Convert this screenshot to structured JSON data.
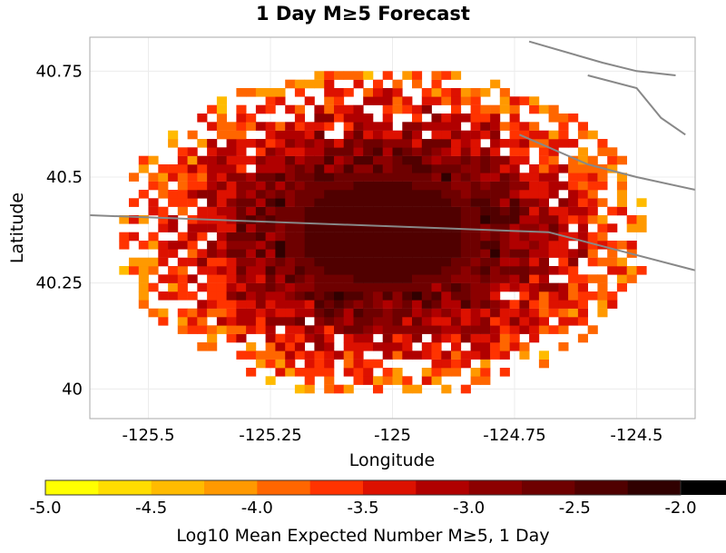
{
  "chart_data": {
    "type": "heatmap",
    "title": "1 Day M≥5 Forecast",
    "xlabel": "Longitude",
    "ylabel": "Latitude",
    "xlim": [
      -125.62,
      -124.38
    ],
    "ylim": [
      39.93,
      40.83
    ],
    "x_ticks": [
      -125.5,
      -125.25,
      -125,
      -124.75,
      -124.5
    ],
    "x_tick_labels": [
      "-125.5",
      "-125.25",
      "-125",
      "-124.75",
      "-124.5"
    ],
    "y_ticks": [
      40,
      40.25,
      40.5,
      40.75
    ],
    "y_tick_labels": [
      "40",
      "40.25",
      "40.5",
      "40.75"
    ],
    "grid": true,
    "cell_size_deg": 0.02,
    "field": {
      "center_lon": -125.02,
      "center_lat": 40.37,
      "peak_log10": -2.3,
      "core_lon_radius": 0.21,
      "core_lat_radius": 0.15,
      "outer_extent_deg": 0.5,
      "background": "white (below -5.0)"
    },
    "colorbar": {
      "label": "Log10 Mean Expected Number M≥5, 1 Day",
      "min": -5.0,
      "max": -2.0,
      "step": 0.25,
      "tick_labels": [
        "-5.0",
        "-4.5",
        "-4.0",
        "-3.5",
        "-3.0",
        "-2.5",
        "-2.0"
      ],
      "colors": [
        "#ffff00",
        "#ffdd00",
        "#ffbb00",
        "#ff9900",
        "#ff6600",
        "#ff3300",
        "#dd1100",
        "#b00000",
        "#8c0000",
        "#6e0000",
        "#500000",
        "#300000",
        "#000000"
      ]
    },
    "overlay_lines": [
      {
        "name": "fault-trace",
        "color": "#888888",
        "points": [
          [
            -125.62,
            40.41
          ],
          [
            -124.68,
            40.37
          ],
          [
            -124.38,
            40.28
          ]
        ]
      },
      {
        "name": "coast-upper",
        "color": "#888888",
        "points": [
          [
            -124.72,
            40.82
          ],
          [
            -124.57,
            40.77
          ],
          [
            -124.5,
            40.75
          ],
          [
            -124.42,
            40.74
          ]
        ]
      },
      {
        "name": "coast-right",
        "color": "#888888",
        "points": [
          [
            -124.6,
            40.74
          ],
          [
            -124.5,
            40.71
          ],
          [
            -124.45,
            40.64
          ],
          [
            -124.4,
            40.6
          ]
        ]
      },
      {
        "name": "ridge-line",
        "color": "#888888",
        "points": [
          [
            -124.74,
            40.6
          ],
          [
            -124.6,
            40.53
          ],
          [
            -124.5,
            40.5
          ],
          [
            -124.38,
            40.47
          ]
        ]
      }
    ]
  }
}
